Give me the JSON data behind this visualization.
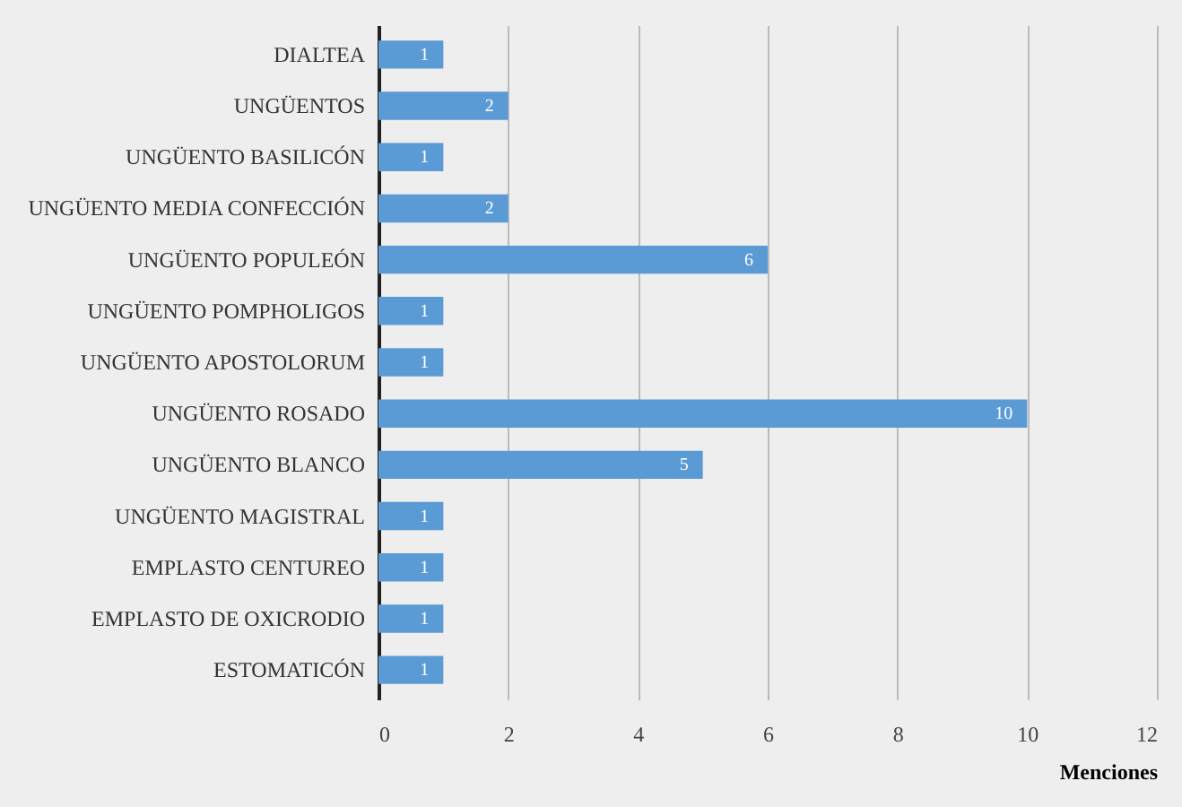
{
  "chart_data": {
    "type": "bar",
    "orientation": "horizontal",
    "xlabel": "Menciones",
    "categories": [
      "DIALTEA",
      "UNGÜENTOS",
      "UNGÜENTO BASILICÓN",
      "UNGÜENTO MEDIA CONFECCIÓN",
      "UNGÜENTO POPULEÓN",
      "UNGÜENTO POMPHOLIGOS",
      "UNGÜENTO APOSTOLORUM",
      "UNGÜENTO ROSADO",
      "UNGÜENTO BLANCO",
      "UNGÜENTO MAGISTRAL",
      "EMPLASTO CENTUREO",
      "EMPLASTO DE OXICRODIO",
      "ESTOMATICÓN"
    ],
    "values": [
      1,
      2,
      1,
      2,
      6,
      1,
      1,
      10,
      5,
      1,
      1,
      1,
      1
    ],
    "color": "#5b9bd5",
    "xlim": [
      0,
      12
    ],
    "xticks": [
      0,
      2,
      4,
      6,
      8,
      10,
      12
    ],
    "grid": "x",
    "data_labels": true
  }
}
